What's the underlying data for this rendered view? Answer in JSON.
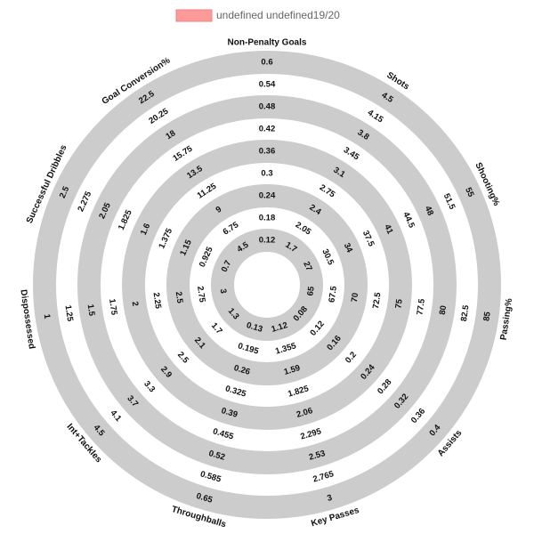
{
  "chart_data": {
    "type": "radar",
    "series": [
      {
        "name": "undefined undefined19/20",
        "color": "#ff9a9a"
      }
    ],
    "ring_color": "#cccccc",
    "axes": [
      {
        "name": "Non-Penalty Goals",
        "rlim": [
          0.12,
          0.6
        ],
        "ticks": [
          0.12,
          0.18,
          0.24,
          0.3,
          0.36,
          0.42,
          0.48,
          0.54,
          0.6
        ]
      },
      {
        "name": "Shots",
        "rlim": [
          1.7,
          4.5
        ],
        "ticks": [
          1.7,
          2.05,
          2.4,
          2.75,
          3.1,
          3.45,
          3.8,
          4.15,
          4.5
        ]
      },
      {
        "name": "Shooting%",
        "rlim": [
          27,
          55
        ],
        "ticks": [
          27,
          30.5,
          34,
          37.5,
          41,
          44.5,
          48,
          51.5,
          55
        ]
      },
      {
        "name": "Passing%",
        "rlim": [
          65,
          85
        ],
        "ticks": [
          65,
          67.5,
          70,
          72.5,
          75,
          77.5,
          80,
          82.5,
          85
        ]
      },
      {
        "name": "Assists",
        "rlim": [
          0.08,
          0.4
        ],
        "ticks": [
          0.08,
          0.12,
          0.16,
          0.2,
          0.24,
          0.28,
          0.32,
          0.36,
          0.4
        ]
      },
      {
        "name": "Key Passes",
        "rlim": [
          1.12,
          3
        ],
        "ticks": [
          1.12,
          1.355,
          1.59,
          1.825,
          2.06,
          2.295,
          2.53,
          2.765,
          3
        ]
      },
      {
        "name": "Throughballs",
        "rlim": [
          0.13,
          0.65
        ],
        "ticks": [
          0.13,
          0.195,
          0.26,
          0.325,
          0.39,
          0.455,
          0.52,
          0.585,
          0.65
        ]
      },
      {
        "name": "Int+Tackles",
        "rlim": [
          1.3,
          4.5
        ],
        "ticks": [
          1.3,
          1.7,
          2.1,
          2.5,
          2.9,
          3.3,
          3.7,
          4.1,
          4.5
        ]
      },
      {
        "name": "Dispossessed",
        "rlim": [
          3,
          1
        ],
        "ticks": [
          3,
          2.75,
          2.5,
          2.25,
          2,
          1.75,
          1.5,
          1.25,
          1
        ]
      },
      {
        "name": "Successful Dribbles",
        "rlim": [
          0.7,
          2.5
        ],
        "ticks": [
          0.7,
          0.925,
          1.15,
          1.375,
          1.6,
          1.825,
          2.05,
          2.275,
          2.5
        ]
      },
      {
        "name": "Goal Conversion%",
        "rlim": [
          4.5,
          22.5
        ],
        "ticks": [
          4.5,
          6.75,
          9,
          11.25,
          13.5,
          15.75,
          18,
          20.25,
          22.5
        ]
      }
    ]
  }
}
